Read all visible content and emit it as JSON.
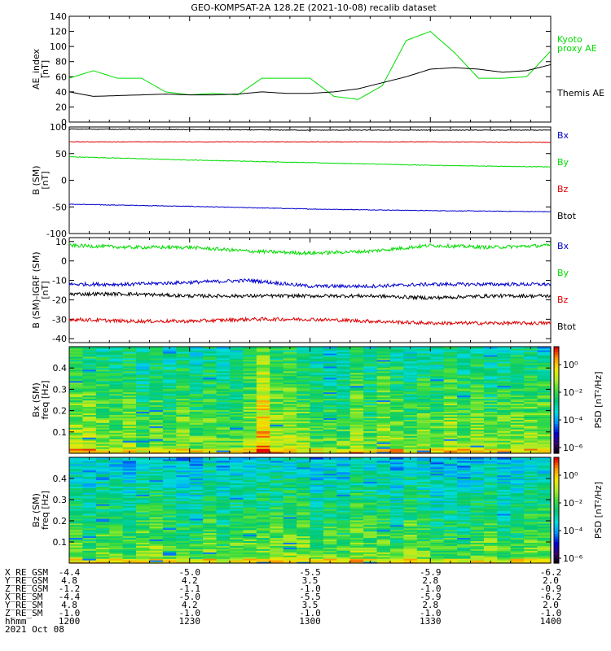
{
  "title": "GEO-KOMPSAT-2A 128.2E (2021-10-08) recalib dataset",
  "colors": {
    "green": "#00dd00",
    "blue": "#0000cc",
    "red": "#dd0000",
    "black": "#000000"
  },
  "chart_data": [
    {
      "type": "line",
      "panel": "ae",
      "ylabel": "AE_index [nT]",
      "ylabel_lines": [
        "AE_index",
        "[nT]"
      ],
      "ylim": [
        0,
        140
      ],
      "yticks": [
        0,
        20,
        40,
        60,
        80,
        100,
        120,
        140
      ],
      "x_hours": [
        12.0,
        12.1,
        12.2,
        12.3,
        12.4,
        12.5,
        12.6,
        12.7,
        12.8,
        12.9,
        13.0,
        13.1,
        13.2,
        13.3,
        13.4,
        13.5,
        13.6,
        13.7,
        13.8,
        13.9,
        14.0
      ],
      "series": [
        {
          "name": "Kyoto proxy AE",
          "label_lines": [
            "Kyoto",
            "proxy AE"
          ],
          "color": "green",
          "values": [
            58,
            68,
            58,
            58,
            40,
            36,
            38,
            36,
            58,
            58,
            58,
            34,
            30,
            48,
            108,
            120,
            92,
            58,
            58,
            60,
            94
          ]
        },
        {
          "name": "Themis AE",
          "label_lines": [
            "Themis AE"
          ],
          "color": "black",
          "values": [
            40,
            34,
            35,
            36,
            37,
            36,
            36,
            37,
            40,
            38,
            38,
            40,
            44,
            52,
            60,
            70,
            72,
            70,
            66,
            68,
            76
          ]
        }
      ]
    },
    {
      "type": "line",
      "panel": "bsm",
      "ylabel": "B (SM) [nT]",
      "ylabel_lines": [
        "B (SM)",
        "[nT]"
      ],
      "ylim": [
        -100,
        100
      ],
      "yticks": [
        -100,
        -50,
        0,
        50,
        100
      ],
      "x_hours": [
        12.0,
        12.5,
        13.0,
        13.5,
        14.0
      ],
      "series": [
        {
          "name": "Bx",
          "label_lines": [
            "Bx"
          ],
          "color": "blue",
          "values": [
            -45,
            -49,
            -54,
            -57,
            -59
          ]
        },
        {
          "name": "By",
          "label_lines": [
            "By"
          ],
          "color": "green",
          "values": [
            44,
            38,
            33,
            28,
            25
          ]
        },
        {
          "name": "Bz",
          "label_lines": [
            "Bz"
          ],
          "color": "red",
          "values": [
            72,
            72,
            72,
            72,
            71
          ]
        },
        {
          "name": "Btot",
          "label_lines": [
            "Btot"
          ],
          "color": "black",
          "values": [
            96,
            95,
            94,
            94,
            94
          ]
        }
      ]
    },
    {
      "type": "line",
      "panel": "bdiff",
      "ylabel": "B (SM)-IGRF (SM) [nT]",
      "ylabel_lines": [
        "B (SM)-IGRF (SM)",
        "[nT]"
      ],
      "ylim": [
        -42,
        12
      ],
      "yticks": [
        -40,
        -30,
        -20,
        -10,
        0,
        10
      ],
      "x_hours": [
        12.0,
        12.25,
        12.5,
        12.75,
        13.0,
        13.25,
        13.5,
        13.75,
        14.0
      ],
      "series": [
        {
          "name": "Bx",
          "label_lines": [
            "Bx"
          ],
          "color": "blue",
          "values": [
            -12,
            -12,
            -11,
            -10,
            -13,
            -13,
            -12,
            -12,
            -12
          ]
        },
        {
          "name": "By",
          "label_lines": [
            "By"
          ],
          "color": "green",
          "values": [
            8,
            7,
            7,
            5,
            4,
            5,
            8,
            7,
            8
          ]
        },
        {
          "name": "Bz",
          "label_lines": [
            "Bz"
          ],
          "color": "red",
          "values": [
            -30,
            -31,
            -31,
            -30,
            -30,
            -31,
            -32,
            -32,
            -32
          ]
        },
        {
          "name": "Btot",
          "label_lines": [
            "Btot"
          ],
          "color": "black",
          "values": [
            -17,
            -17,
            -18,
            -18,
            -18,
            -18,
            -19,
            -18,
            -18
          ]
        }
      ]
    },
    {
      "type": "heatmap",
      "panel": "bx_spec",
      "ylabel": "Bx (SM) freq [Hz]",
      "ylabel_lines": [
        "Bx (SM)",
        "freq [Hz]"
      ],
      "ylim": [
        0.0,
        0.5
      ],
      "yticks": [
        0.1,
        0.2,
        0.3,
        0.4
      ],
      "colorbar": {
        "label": "PSD [nT²/Hz]",
        "ticks": [
          "10⁰",
          "10⁻²",
          "10⁻⁴",
          "10⁻⁶"
        ]
      }
    },
    {
      "type": "heatmap",
      "panel": "bz_spec",
      "ylabel": "Bz (SM) freq [Hz]",
      "ylabel_lines": [
        "Bz (SM)",
        "freq [Hz]"
      ],
      "ylim": [
        0.0,
        0.5
      ],
      "yticks": [
        0.1,
        0.2,
        0.3,
        0.4
      ],
      "colorbar": {
        "label": "PSD [nT²/Hz]",
        "ticks": [
          "10⁰",
          "10⁻²",
          "10⁻⁴",
          "10⁻⁶"
        ]
      }
    }
  ],
  "ephemeris": {
    "row_labels": [
      "X_RE_GSM",
      "Y_RE_GSM",
      "Z_RE_GSM",
      "X_RE_SM",
      "Y_RE_SM",
      "Z_RE_SM",
      "hhmm",
      "2021 Oct 08"
    ],
    "columns": [
      {
        "hour": 12.0,
        "values": [
          "-4.4",
          "4.8",
          "-1.2",
          "-4.4",
          "4.8",
          "-1.0",
          "1200"
        ]
      },
      {
        "hour": 12.5,
        "values": [
          "-5.0",
          "4.2",
          "-1.1",
          "-5.0",
          "4.2",
          "-1.0",
          "1230"
        ]
      },
      {
        "hour": 13.0,
        "values": [
          "-5.5",
          "3.5",
          "-1.0",
          "-5.5",
          "3.5",
          "-1.0",
          "1300"
        ]
      },
      {
        "hour": 13.5,
        "values": [
          "-5.9",
          "2.8",
          "-1.0",
          "-5.9",
          "2.8",
          "-1.0",
          "1330"
        ]
      },
      {
        "hour": 14.0,
        "values": [
          "-6.2",
          "2.0",
          "-0.9",
          "-6.2",
          "2.0",
          "-1.0",
          "1400"
        ]
      }
    ]
  }
}
